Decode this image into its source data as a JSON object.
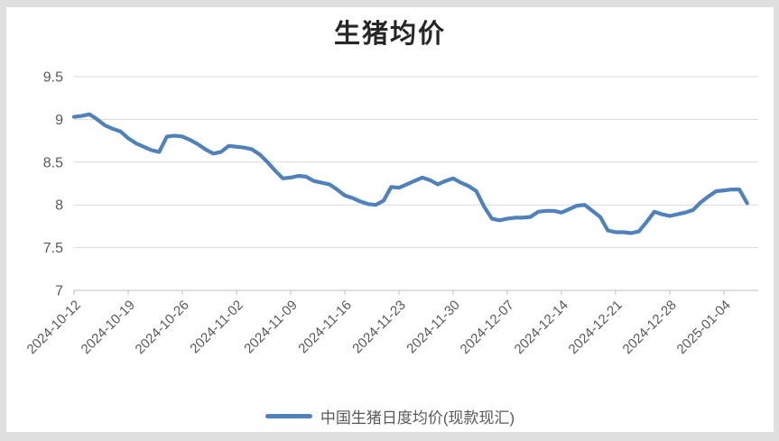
{
  "window": {
    "outer_background": "#dfdfdf",
    "panel_background": "#ffffff"
  },
  "chart_data": {
    "type": "line",
    "title": "生猪均价",
    "xlabel": "",
    "ylabel": "",
    "ylim": [
      7,
      9.5
    ],
    "y_ticks": [
      9.5,
      9,
      8.5,
      8,
      7.5,
      7
    ],
    "grid": "horizontal-only",
    "legend_position": "bottom-center",
    "x_tick_labels": [
      "2024-10-12",
      "2024-10-19",
      "2024-10-26",
      "2024-11-02",
      "2024-11-09",
      "2024-11-16",
      "2024-11-23",
      "2024-11-30",
      "2024-12-07",
      "2024-12-14",
      "2024-12-21",
      "2024-12-28",
      "2025-01-04"
    ],
    "x_frequency": "daily",
    "series": [
      {
        "name": "中国生猪日度均价(现款现汇)",
        "color": "#4F81BD",
        "values": [
          9.03,
          9.04,
          9.06,
          9.0,
          8.93,
          8.89,
          8.86,
          8.78,
          8.72,
          8.68,
          8.64,
          8.62,
          8.8,
          8.81,
          8.8,
          8.76,
          8.71,
          8.65,
          8.6,
          8.62,
          8.69,
          8.68,
          8.67,
          8.65,
          8.59,
          8.5,
          8.4,
          8.31,
          8.32,
          8.34,
          8.33,
          8.28,
          8.26,
          8.24,
          8.18,
          8.11,
          8.08,
          8.04,
          8.01,
          8.0,
          8.05,
          8.21,
          8.2,
          8.24,
          8.28,
          8.32,
          8.29,
          8.24,
          8.28,
          8.31,
          8.26,
          8.22,
          8.16,
          7.98,
          7.84,
          7.82,
          7.84,
          7.85,
          7.85,
          7.86,
          7.92,
          7.93,
          7.93,
          7.91,
          7.95,
          7.99,
          8.0,
          7.93,
          7.86,
          7.7,
          7.68,
          7.68,
          7.67,
          7.69,
          7.8,
          7.92,
          7.89,
          7.87,
          7.89,
          7.91,
          7.94,
          8.03,
          8.1,
          8.16,
          8.17,
          8.18,
          8.18,
          8.02
        ]
      }
    ],
    "colors": {
      "gridline": "#d9d9d9",
      "axis_line": "#bfbfbf",
      "tick_label": "#595959",
      "title_text": "#262626"
    }
  }
}
